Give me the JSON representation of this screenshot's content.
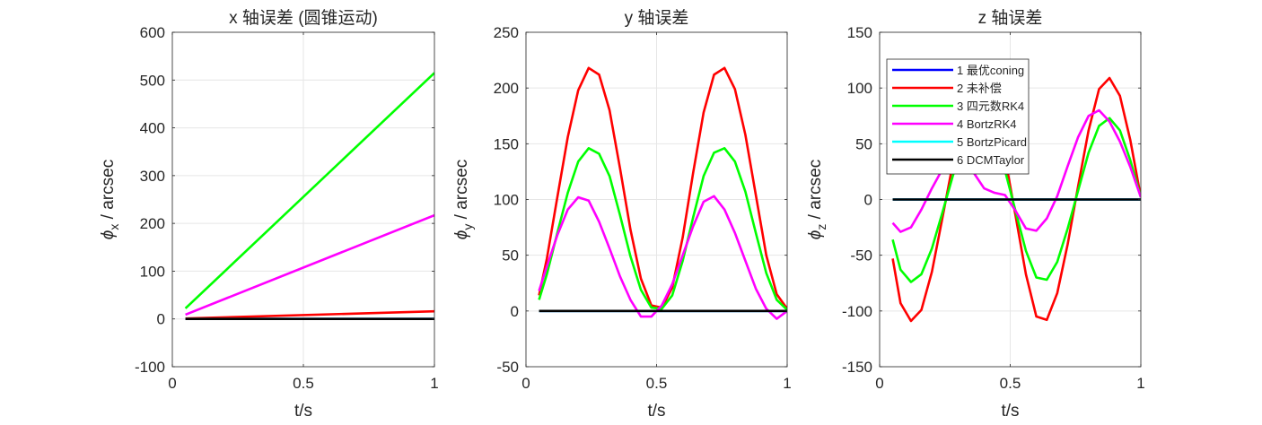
{
  "chart_data": [
    {
      "type": "line",
      "title": "x 轴误差 (圆锥运动)",
      "xlabel": "t/s",
      "ylabel_main": "ϕ",
      "ylabel_sub": "x",
      "ylabel_unit": " / arcsec",
      "xlim": [
        0,
        1
      ],
      "ylim": [
        -100,
        600
      ],
      "xticks": [
        0,
        0.5,
        1
      ],
      "yticks": [
        -100,
        0,
        100,
        200,
        300,
        400,
        500,
        600
      ],
      "grid": true,
      "series": [
        {
          "name": "1 最优coning",
          "color": "#0000ff",
          "x": [
            0.05,
            1
          ],
          "y": [
            0,
            0
          ]
        },
        {
          "name": "2 未补偿",
          "color": "#ff0000",
          "x": [
            0.05,
            1
          ],
          "y": [
            1,
            16
          ]
        },
        {
          "name": "3 四元数RK4",
          "color": "#00ff00",
          "x": [
            0.05,
            1
          ],
          "y": [
            22,
            515
          ]
        },
        {
          "name": "4 BortzRK4",
          "color": "#ff00ff",
          "x": [
            0.05,
            1
          ],
          "y": [
            9,
            217
          ]
        },
        {
          "name": "5 BortzPicard",
          "color": "#00ffff",
          "x": [
            0.05,
            1
          ],
          "y": [
            0,
            0
          ]
        },
        {
          "name": "6 DCMTaylor",
          "color": "#000000",
          "x": [
            0.05,
            1
          ],
          "y": [
            0,
            0
          ]
        }
      ]
    },
    {
      "type": "line",
      "title": "y 轴误差",
      "xlabel": "t/s",
      "ylabel_main": "ϕ",
      "ylabel_sub": "y",
      "ylabel_unit": " / arcsec",
      "xlim": [
        0,
        1
      ],
      "ylim": [
        -50,
        250
      ],
      "xticks": [
        0,
        0.5,
        1
      ],
      "yticks": [
        -50,
        0,
        50,
        100,
        150,
        200,
        250
      ],
      "grid": true,
      "series": [
        {
          "name": "1 最优coning",
          "color": "#0000ff",
          "x": [
            0.05,
            1
          ],
          "y": [
            0,
            0
          ]
        },
        {
          "name": "2 未补偿",
          "color": "#ff0000",
          "x": [
            0.05,
            0.08,
            0.12,
            0.16,
            0.2,
            0.24,
            0.28,
            0.32,
            0.36,
            0.4,
            0.44,
            0.48,
            0.52,
            0.56,
            0.6,
            0.64,
            0.68,
            0.72,
            0.76,
            0.8,
            0.84,
            0.88,
            0.92,
            0.96,
            1.0
          ],
          "y": [
            14,
            47,
            102,
            156,
            198,
            218,
            212,
            180,
            128,
            73,
            29,
            5,
            3,
            21,
            66,
            124,
            178,
            212,
            218,
            199,
            158,
            104,
            50,
            15,
            2
          ]
        },
        {
          "name": "3 四元数RK4",
          "color": "#00ff00",
          "x": [
            0.05,
            0.08,
            0.12,
            0.16,
            0.2,
            0.24,
            0.28,
            0.32,
            0.36,
            0.4,
            0.44,
            0.48,
            0.52,
            0.56,
            0.6,
            0.64,
            0.68,
            0.72,
            0.76,
            0.8,
            0.84,
            0.88,
            0.92,
            0.96,
            1.0
          ],
          "y": [
            10,
            33,
            70,
            106,
            134,
            146,
            141,
            121,
            86,
            49,
            19,
            3,
            2,
            14,
            45,
            84,
            121,
            142,
            146,
            134,
            107,
            70,
            34,
            10,
            1
          ]
        },
        {
          "name": "4 BortzRK4",
          "color": "#ff00ff",
          "x": [
            0.05,
            0.08,
            0.12,
            0.16,
            0.2,
            0.24,
            0.28,
            0.32,
            0.36,
            0.4,
            0.44,
            0.48,
            0.52,
            0.56,
            0.6,
            0.64,
            0.68,
            0.72,
            0.76,
            0.8,
            0.84,
            0.88,
            0.92,
            0.96,
            1.0
          ],
          "y": [
            18,
            40,
            68,
            91,
            102,
            99,
            80,
            56,
            31,
            10,
            -5,
            -5,
            5,
            24,
            50,
            76,
            98,
            103,
            91,
            70,
            45,
            20,
            2,
            -7,
            0
          ]
        },
        {
          "name": "5 BortzPicard",
          "color": "#00ffff",
          "x": [
            0.05,
            1
          ],
          "y": [
            0,
            0
          ]
        },
        {
          "name": "6 DCMTaylor",
          "color": "#000000",
          "x": [
            0.05,
            1
          ],
          "y": [
            0,
            0
          ]
        }
      ]
    },
    {
      "type": "line",
      "title": "z 轴误差",
      "xlabel": "t/s",
      "ylabel_main": "ϕ",
      "ylabel_sub": "z",
      "ylabel_unit": " / arcsec",
      "xlim": [
        0,
        1
      ],
      "ylim": [
        -150,
        150
      ],
      "xticks": [
        0,
        0.5,
        1
      ],
      "yticks": [
        -150,
        -100,
        -50,
        0,
        50,
        100,
        150
      ],
      "grid": true,
      "legend": {
        "position": "top-left",
        "entries": [
          {
            "label": "1 最优coning",
            "color": "#0000ff"
          },
          {
            "label": "2 未补偿",
            "color": "#ff0000"
          },
          {
            "label": "3 四元数RK4",
            "color": "#00ff00"
          },
          {
            "label": "4 BortzRK4",
            "color": "#ff00ff"
          },
          {
            "label": "5 BortzPicard",
            "color": "#00ffff"
          },
          {
            "label": "6 DCMTaylor",
            "color": "#000000"
          }
        ]
      },
      "series": [
        {
          "name": "1 最优coning",
          "color": "#0000ff",
          "x": [
            0.05,
            1
          ],
          "y": [
            0,
            0
          ]
        },
        {
          "name": "2 未补偿",
          "color": "#ff0000",
          "x": [
            0.05,
            0.08,
            0.12,
            0.16,
            0.2,
            0.24,
            0.28,
            0.32,
            0.36,
            0.4,
            0.44,
            0.48,
            0.52,
            0.56,
            0.6,
            0.64,
            0.68,
            0.72,
            0.76,
            0.8,
            0.84,
            0.88,
            0.92,
            0.96,
            1.0
          ],
          "y": [
            -53,
            -93,
            -109,
            -99,
            -65,
            -17,
            32,
            74,
            99,
            103,
            82,
            38,
            -14,
            -67,
            -105,
            -108,
            -84,
            -40,
            12,
            62,
            99,
            109,
            93,
            53,
            2
          ]
        },
        {
          "name": "3 四元数RK4",
          "color": "#00ff00",
          "x": [
            0.05,
            0.08,
            0.12,
            0.16,
            0.2,
            0.24,
            0.28,
            0.32,
            0.36,
            0.4,
            0.44,
            0.48,
            0.52,
            0.56,
            0.6,
            0.64,
            0.68,
            0.72,
            0.76,
            0.8,
            0.84,
            0.88,
            0.92,
            0.96,
            1.0
          ],
          "y": [
            -36,
            -63,
            -74,
            -67,
            -44,
            -12,
            21,
            50,
            67,
            70,
            56,
            26,
            -10,
            -46,
            -70,
            -72,
            -56,
            -26,
            8,
            42,
            66,
            73,
            62,
            35,
            2
          ]
        },
        {
          "name": "4 BortzRK4",
          "color": "#ff00ff",
          "x": [
            0.05,
            0.08,
            0.12,
            0.16,
            0.2,
            0.24,
            0.28,
            0.32,
            0.36,
            0.4,
            0.44,
            0.48,
            0.52,
            0.56,
            0.6,
            0.64,
            0.68,
            0.72,
            0.76,
            0.8,
            0.84,
            0.88,
            0.92,
            0.96,
            1.0
          ],
          "y": [
            -21,
            -29,
            -25,
            -9,
            10,
            27,
            36,
            34,
            24,
            10,
            6,
            4,
            -10,
            -26,
            -28,
            -17,
            3,
            30,
            56,
            75,
            80,
            70,
            52,
            29,
            2
          ]
        },
        {
          "name": "5 BortzPicard",
          "color": "#00ffff",
          "x": [
            0.05,
            1
          ],
          "y": [
            0,
            0
          ]
        },
        {
          "name": "6 DCMTaylor",
          "color": "#000000",
          "x": [
            0.05,
            1
          ],
          "y": [
            0,
            0
          ]
        }
      ]
    }
  ]
}
